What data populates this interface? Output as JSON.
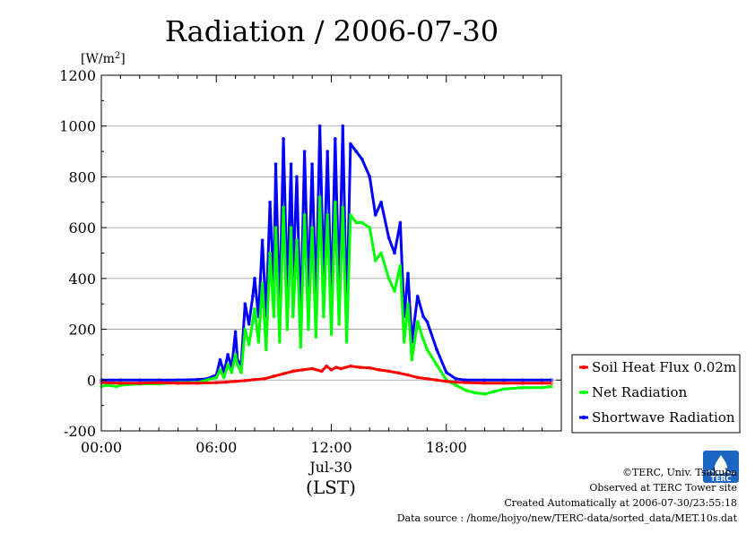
{
  "chart_data": {
    "type": "line",
    "title": "Radiation / 2006-07-30",
    "ylabel_unit": "[W/m",
    "ylabel_unit_sup": "2",
    "ylabel_unit_close": "]",
    "ylim": [
      -200,
      1200
    ],
    "xlim": [
      0,
      24
    ],
    "y_ticks": [
      -200,
      0,
      200,
      400,
      600,
      800,
      1000,
      1200
    ],
    "y_tick_labels": [
      "-200",
      "0",
      "200",
      "400",
      "600",
      "800",
      "1000",
      "1200"
    ],
    "x_ticks": [
      0,
      6,
      12,
      18
    ],
    "x_tick_labels": [
      "00:00",
      "06:00",
      "12:00",
      "18:00"
    ],
    "x_sublabel": "Jul-30",
    "x_axis_label": "(LST)",
    "grid": "horizontal",
    "legend_position": "right",
    "series": [
      {
        "name": "Soil Heat Flux 0.02m",
        "color": "#ff0000",
        "x": [
          0,
          1,
          2,
          3,
          4,
          5,
          6,
          6.5,
          7,
          7.5,
          8,
          8.5,
          9,
          9.5,
          10,
          10.5,
          11,
          11.5,
          11.75,
          12,
          12.25,
          12.5,
          13,
          13.5,
          14,
          14.5,
          15,
          15.5,
          16,
          16.5,
          17,
          17.5,
          18,
          18.5,
          19,
          20,
          21,
          22,
          23,
          23.5
        ],
        "values": [
          -10,
          -12,
          -12,
          -10,
          -12,
          -12,
          -10,
          -8,
          -5,
          -2,
          2,
          5,
          15,
          25,
          35,
          40,
          45,
          35,
          55,
          40,
          50,
          45,
          55,
          50,
          48,
          40,
          35,
          28,
          20,
          10,
          5,
          0,
          -5,
          -8,
          -10,
          -12,
          -12,
          -12,
          -12,
          -12
        ]
      },
      {
        "name": "Net Radiation",
        "color": "#00ff00",
        "x": [
          0,
          0.3,
          0.8,
          1.0,
          2.0,
          3.0,
          4.0,
          5.0,
          5.5,
          6.0,
          6.2,
          6.4,
          6.6,
          6.8,
          7.0,
          7.1,
          7.3,
          7.5,
          7.7,
          7.9,
          8.0,
          8.2,
          8.4,
          8.6,
          8.8,
          9.0,
          9.1,
          9.3,
          9.5,
          9.7,
          9.9,
          10.0,
          10.2,
          10.4,
          10.6,
          10.8,
          11.0,
          11.2,
          11.4,
          11.6,
          11.8,
          12.0,
          12.2,
          12.4,
          12.6,
          12.8,
          13.0,
          13.3,
          13.6,
          14.0,
          14.3,
          14.6,
          15.0,
          15.3,
          15.6,
          15.8,
          16.0,
          16.2,
          16.5,
          16.8,
          17.0,
          17.5,
          18.0,
          18.5,
          19.0,
          19.5,
          20.0,
          20.5,
          21.0,
          22.0,
          23.0,
          23.5
        ],
        "values": [
          -25,
          -20,
          -25,
          -20,
          -15,
          -15,
          -10,
          -10,
          0,
          10,
          40,
          10,
          60,
          30,
          100,
          60,
          30,
          200,
          140,
          230,
          280,
          150,
          380,
          120,
          500,
          250,
          600,
          150,
          680,
          200,
          600,
          250,
          550,
          130,
          650,
          200,
          600,
          170,
          720,
          250,
          650,
          180,
          700,
          220,
          680,
          150,
          650,
          620,
          620,
          600,
          470,
          500,
          400,
          350,
          450,
          150,
          300,
          80,
          230,
          160,
          120,
          60,
          0,
          -20,
          -40,
          -50,
          -55,
          -45,
          -35,
          -30,
          -30,
          -25
        ]
      },
      {
        "name": "Shortwave Radiation",
        "color": "#0000ff",
        "x": [
          0,
          1,
          2,
          3,
          4,
          5,
          5.5,
          6.0,
          6.2,
          6.4,
          6.6,
          6.8,
          7.0,
          7.1,
          7.3,
          7.5,
          7.7,
          7.9,
          8.0,
          8.2,
          8.4,
          8.6,
          8.8,
          9.0,
          9.1,
          9.3,
          9.5,
          9.7,
          9.9,
          10.0,
          10.2,
          10.4,
          10.6,
          10.8,
          11.0,
          11.2,
          11.4,
          11.6,
          11.8,
          12.0,
          12.2,
          12.4,
          12.6,
          12.8,
          13.0,
          13.3,
          13.6,
          14.0,
          14.3,
          14.6,
          15.0,
          15.3,
          15.6,
          15.8,
          16.0,
          16.2,
          16.5,
          16.8,
          17.0,
          17.5,
          18.0,
          18.5,
          19.0,
          20.0,
          21.0,
          22.0,
          23.0,
          23.5
        ],
        "values": [
          0,
          0,
          0,
          0,
          0,
          2,
          5,
          20,
          80,
          30,
          100,
          50,
          190,
          80,
          60,
          300,
          220,
          330,
          400,
          250,
          550,
          250,
          700,
          350,
          850,
          260,
          950,
          350,
          850,
          400,
          800,
          220,
          900,
          350,
          850,
          300,
          1000,
          400,
          900,
          300,
          950,
          350,
          1000,
          250,
          930,
          900,
          870,
          800,
          650,
          700,
          560,
          500,
          620,
          250,
          420,
          150,
          330,
          250,
          230,
          120,
          30,
          5,
          0,
          0,
          0,
          0,
          0,
          0
        ]
      }
    ]
  },
  "credits": {
    "copyright": "©TERC, Univ. Tsukuba",
    "observed": "Observed at TERC Tower site",
    "created": "Created Automatically at 2006-07-30/23:55:18",
    "source": "Data source : /home/hojyo/new/TERC-data/sorted_data/MET.10s.dat"
  },
  "logo": {
    "text": "TERC",
    "color": "#1a66c2"
  }
}
